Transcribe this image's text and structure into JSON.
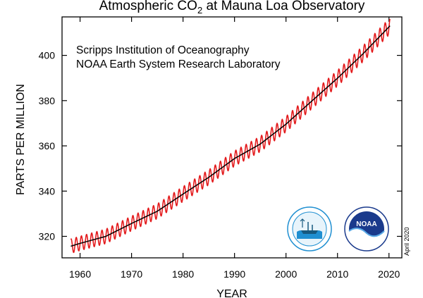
{
  "chart_data": {
    "type": "line",
    "title": "Atmospheric CO",
    "title_subscript": "2",
    "title_suffix": " at Mauna Loa Observatory",
    "xlabel": "YEAR",
    "ylabel": "PARTS PER MILLION",
    "xlim": [
      1956.5,
      2022.5
    ],
    "ylim": [
      310.5,
      417
    ],
    "x_ticks": [
      1960,
      1970,
      1980,
      1990,
      2000,
      2010,
      2020
    ],
    "y_ticks": [
      320,
      340,
      360,
      380,
      400
    ],
    "grid": false,
    "annotations": [
      "Scripps Institution of Oceanography",
      "NOAA Earth System Research Laboratory"
    ],
    "date_stamp": "April 2020",
    "logos": [
      "scripps-oceanography-logo",
      "noaa-logo"
    ],
    "colors": {
      "monthly": "#e31a1c",
      "trend": "#000000"
    },
    "series": [
      {
        "style": "monthly mean (red, seasonal)",
        "x_start": 1958.2,
        "x_end": 2020.25,
        "x_step": 0.0833,
        "seasonal_amplitude_ppm": 3.2
      },
      {
        "style": "seasonally corrected trend (black)",
        "x": [
          1958,
          1960,
          1965,
          1970,
          1975,
          1980,
          1985,
          1990,
          1995,
          2000,
          2005,
          2010,
          2015,
          2020
        ],
        "y": [
          315.5,
          316.9,
          320.0,
          325.7,
          331.1,
          338.7,
          346.1,
          354.4,
          360.8,
          369.6,
          379.8,
          389.9,
          400.8,
          412.6
        ]
      }
    ]
  }
}
